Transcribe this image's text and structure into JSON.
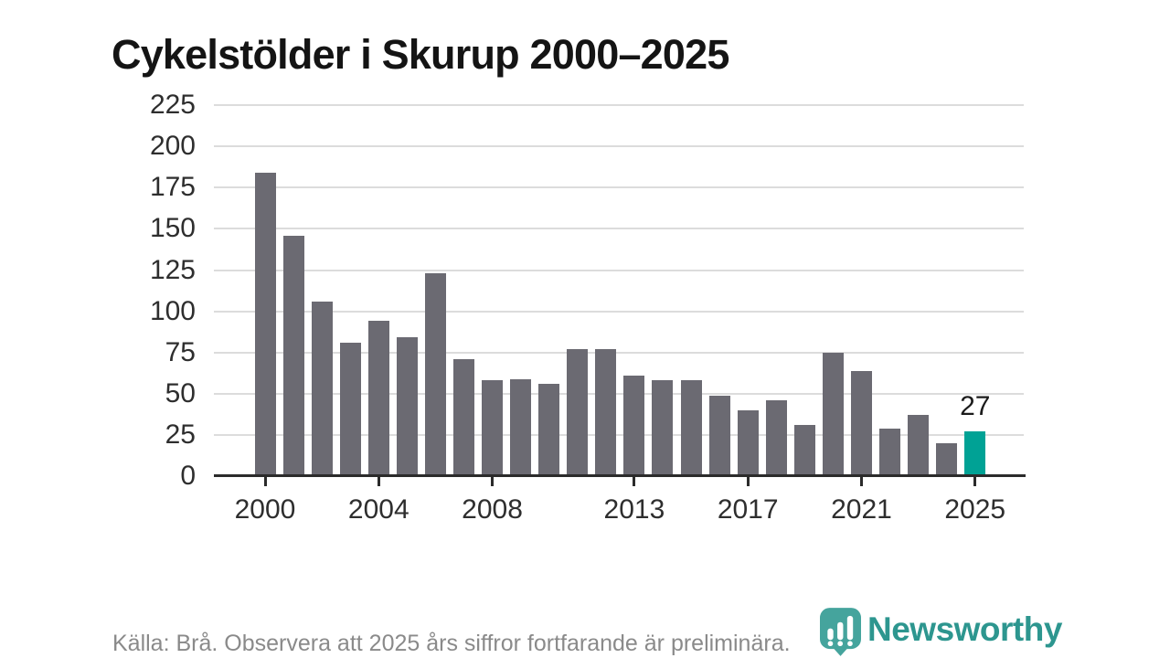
{
  "title": "Cykelstölder i Skurup 2000–2025",
  "chart_data": {
    "type": "bar",
    "title": "Cykelstölder i Skurup 2000–2025",
    "xlabel": "",
    "ylabel": "",
    "x": [
      2000,
      2001,
      2002,
      2003,
      2004,
      2005,
      2006,
      2007,
      2008,
      2009,
      2010,
      2011,
      2012,
      2013,
      2014,
      2015,
      2016,
      2017,
      2018,
      2019,
      2020,
      2021,
      2022,
      2023,
      2024,
      2025
    ],
    "values": [
      184,
      146,
      106,
      81,
      94,
      84,
      123,
      71,
      58,
      59,
      56,
      77,
      77,
      61,
      58,
      58,
      49,
      40,
      46,
      31,
      75,
      64,
      29,
      37,
      20,
      27
    ],
    "y_ticks": [
      0,
      25,
      50,
      75,
      100,
      125,
      150,
      175,
      200,
      225
    ],
    "x_tick_labels": [
      "2000",
      "2004",
      "2008",
      "2013",
      "2017",
      "2021",
      "2025"
    ],
    "x_tick_years": [
      2000,
      2004,
      2008,
      2013,
      2017,
      2021,
      2025
    ],
    "ylim": [
      0,
      235
    ],
    "grid": true,
    "legend": "none",
    "highlight": {
      "year": 2025,
      "label": "27"
    },
    "colors": {
      "bar": "#6b6a72",
      "highlight": "#00a295"
    }
  },
  "footer": {
    "source_note": "Källa: Brå. Observera att 2025 års siffror fortfarande är preliminära."
  },
  "logo": {
    "text": "Newsworthy",
    "icon": "newsworthy-pin-barchart-icon",
    "text_color": "#2d968f",
    "icon_color": "#45a49d"
  }
}
